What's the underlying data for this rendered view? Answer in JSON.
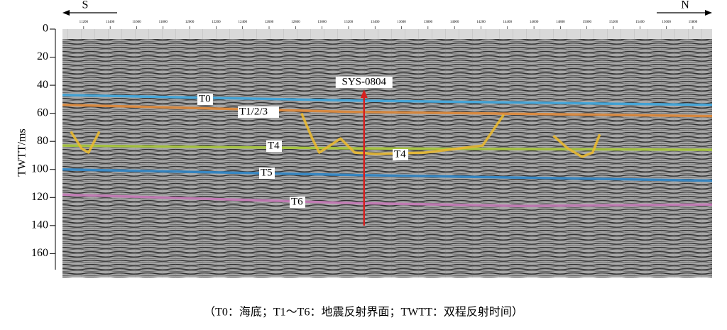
{
  "chart_data": {
    "type": "line",
    "direction_left": "S",
    "direction_right": "N",
    "ylabel": "TWTT/ms",
    "caption": "（T0：海底；T1～T6：地震反射界面；TWTT：双程反射时间）",
    "xlim": [
      11040,
      15945
    ],
    "xticks": [
      11200,
      11400,
      11600,
      11800,
      12000,
      12200,
      12400,
      12600,
      12800,
      13000,
      13200,
      13400,
      13600,
      13800,
      14000,
      14200,
      14400,
      14600,
      14800,
      15000,
      15200,
      15400,
      15600,
      15800
    ],
    "ylim": [
      0,
      177
    ],
    "yticks": [
      0,
      20,
      40,
      60,
      80,
      100,
      120,
      140,
      160
    ],
    "y_inverted": true,
    "series": [
      {
        "name": "T0",
        "color": "#3fa9e0",
        "x": [
          11040,
          13250,
          15945
        ],
        "values": [
          47,
          51,
          54
        ]
      },
      {
        "name": "T1/2/3",
        "color": "#e0893a",
        "x": [
          11040,
          13250,
          15945
        ],
        "values": [
          54,
          59,
          62
        ]
      },
      {
        "name": "T4",
        "color": "#a8c93a",
        "x": [
          11040,
          13250,
          15945
        ],
        "values": [
          83,
          85,
          86
        ]
      },
      {
        "name": "T4",
        "color": "#e8b830",
        "x": [
          11103,
          11184,
          11237,
          11318,
          12000,
          12845,
          12926,
          12979,
          13060,
          13140,
          13247,
          13408,
          13783,
          14212,
          14372,
          14560,
          14747,
          14855,
          14963,
          15043,
          15097
        ],
        "values": [
          73,
          85,
          88,
          73,
          null,
          60,
          78,
          88,
          83,
          78,
          88,
          89,
          88,
          83,
          61,
          null,
          76,
          85,
          91,
          88,
          75
        ]
      },
      {
        "name": "T5",
        "color": "#2f86c8",
        "x": [
          11040,
          13250,
          15945
        ],
        "values": [
          100,
          104,
          108
        ]
      },
      {
        "name": "T6",
        "color": "#c77ab8",
        "x": [
          11040,
          13250,
          14500,
          15945
        ],
        "values": [
          118,
          124,
          126,
          125
        ]
      }
    ],
    "annotation": {
      "text": "SYS-0804",
      "x": 13317,
      "y_start": 140,
      "y_end": 43,
      "color": "#d62020"
    }
  }
}
